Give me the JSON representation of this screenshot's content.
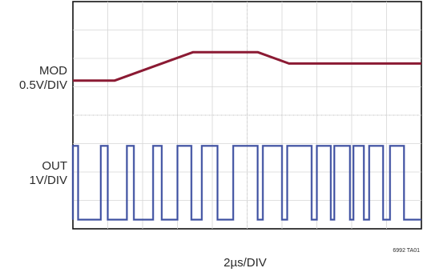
{
  "chart_data": {
    "type": "line",
    "title": "",
    "xlabel": "2µs/DIV",
    "ylabel": "",
    "grid": true,
    "grid_divisions": {
      "horizontal": 10,
      "vertical": 8
    },
    "x_unit": "µs",
    "xlim": [
      0,
      20
    ],
    "legend": "none",
    "footnote": "6992 TA01",
    "channels": [
      {
        "label_line1": "MOD",
        "label_line2": "0.5V/DIV",
        "color": "#8b1a33",
        "waveform": "trapezoid",
        "y_unit": "V",
        "scale_per_div": 0.5,
        "x": [
          0,
          2.4,
          6.9,
          10.6,
          12.4,
          15.2,
          20
        ],
        "values": [
          0,
          0,
          0.5,
          0.5,
          0.3,
          0.3,
          0.3
        ]
      },
      {
        "label_line1": "OUT",
        "label_line2": "1V/DIV",
        "color": "#3d4fa0",
        "waveform": "pwm",
        "y_unit": "V",
        "scale_per_div": 1,
        "low": 0,
        "high": 2.6,
        "pulses": [
          [
            0.0,
            0.3
          ],
          [
            1.6,
            2.0
          ],
          [
            3.1,
            3.5
          ],
          [
            4.6,
            5.1
          ],
          [
            6.0,
            6.8
          ],
          [
            7.4,
            8.3
          ],
          [
            9.2,
            10.6
          ],
          [
            10.9,
            12.0
          ],
          [
            12.3,
            13.7
          ],
          [
            14.0,
            14.8
          ],
          [
            15.0,
            15.9
          ],
          [
            16.1,
            16.7
          ],
          [
            17.0,
            17.8
          ],
          [
            18.2,
            19.0
          ]
        ]
      }
    ]
  }
}
